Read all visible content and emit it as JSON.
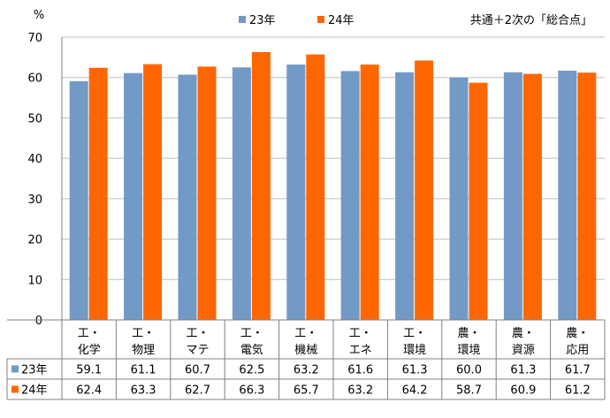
{
  "chart_data": {
    "type": "bar",
    "unit_label": "%",
    "note": "共通＋2次の「総合点」",
    "categories": [
      [
        "工・",
        "化学"
      ],
      [
        "工・",
        "物理"
      ],
      [
        "工・",
        "マテ"
      ],
      [
        "工・",
        "電気"
      ],
      [
        "工・",
        "機械"
      ],
      [
        "工・",
        "エネ"
      ],
      [
        "工・",
        "環境"
      ],
      [
        "農・",
        "環境"
      ],
      [
        "農・",
        "資源"
      ],
      [
        "農・",
        "応用"
      ]
    ],
    "series": [
      {
        "name": "23年",
        "color": "#7399c6",
        "values": [
          59.1,
          61.1,
          60.7,
          62.5,
          63.2,
          61.6,
          61.3,
          60.0,
          61.3,
          61.7
        ],
        "labels": [
          "59.1",
          "61.1",
          "60.7",
          "62.5",
          "63.2",
          "61.6",
          "61.3",
          "60.0",
          "61.3",
          "61.7"
        ]
      },
      {
        "name": "24年",
        "color": "#ff6600",
        "values": [
          62.4,
          63.3,
          62.7,
          66.3,
          65.7,
          63.2,
          64.2,
          58.7,
          60.9,
          61.2
        ],
        "labels": [
          "62.4",
          "63.3",
          "62.7",
          "66.3",
          "65.7",
          "63.2",
          "64.2",
          "58.7",
          "60.9",
          "61.2"
        ]
      }
    ],
    "ylim": [
      0,
      70
    ],
    "yticks": [
      "0",
      "10",
      "20",
      "30",
      "40",
      "50",
      "60",
      "70"
    ],
    "grid": true,
    "legend_position": "top-center",
    "data_table": true
  }
}
